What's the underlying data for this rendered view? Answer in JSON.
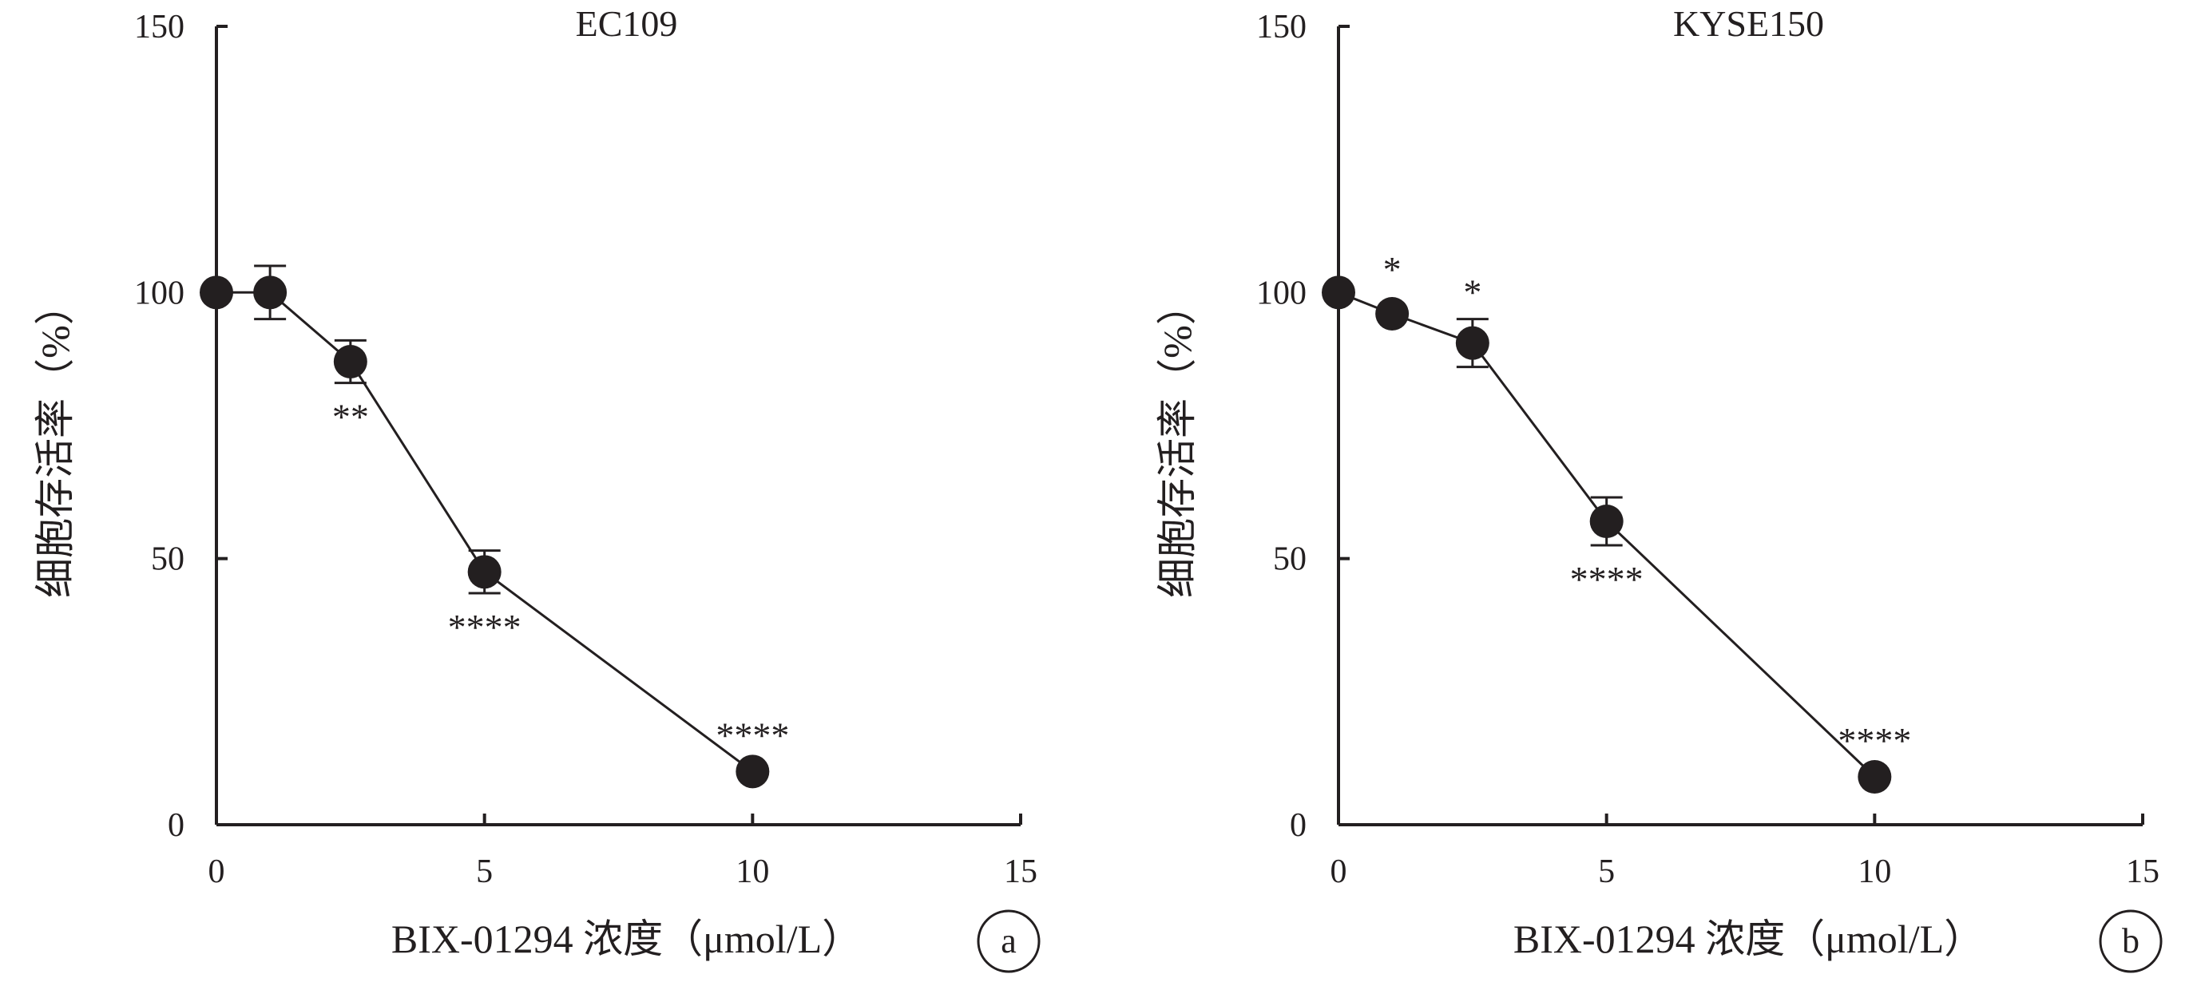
{
  "chart_data": [
    {
      "type": "line",
      "panel": "a",
      "title": "EC109",
      "xlabel": "BIX-01294 浓度（μmol/L）",
      "ylabel": "细胞存活率（%）",
      "xlim": [
        0,
        15
      ],
      "ylim": [
        0,
        150
      ],
      "xticks": [
        "0",
        "5",
        "10",
        "15"
      ],
      "yticks": [
        "0",
        "50",
        "100",
        "150"
      ],
      "grid": false,
      "marker_color": "#231f20",
      "series": [
        {
          "points": [
            {
              "x": 0,
              "y": 100,
              "err": 0,
              "sig": ""
            },
            {
              "x": 1,
              "y": 100,
              "err": 5,
              "sig": ""
            },
            {
              "x": 2.5,
              "y": 87,
              "err": 4,
              "sig": "**"
            },
            {
              "x": 5,
              "y": 47.5,
              "err": 4,
              "sig": "****"
            },
            {
              "x": 10,
              "y": 10,
              "err": 0,
              "sig": "****"
            }
          ]
        }
      ]
    },
    {
      "type": "line",
      "panel": "b",
      "title": "KYSE150",
      "xlabel": "BIX-01294 浓度（μmol/L）",
      "ylabel": "细胞存活率（%）",
      "xlim": [
        0,
        15
      ],
      "ylim": [
        0,
        150
      ],
      "xticks": [
        "0",
        "5",
        "10",
        "15"
      ],
      "yticks": [
        "0",
        "50",
        "100",
        "150"
      ],
      "grid": false,
      "marker_color": "#231f20",
      "series": [
        {
          "points": [
            {
              "x": 0,
              "y": 100,
              "err": 0,
              "sig": ""
            },
            {
              "x": 1,
              "y": 96,
              "err": 0,
              "sig": "*"
            },
            {
              "x": 2.5,
              "y": 90.5,
              "err": 4.5,
              "sig": "*"
            },
            {
              "x": 5,
              "y": 57,
              "err": 4.5,
              "sig": "****"
            },
            {
              "x": 10,
              "y": 9,
              "err": 0,
              "sig": "****"
            }
          ]
        }
      ]
    }
  ]
}
